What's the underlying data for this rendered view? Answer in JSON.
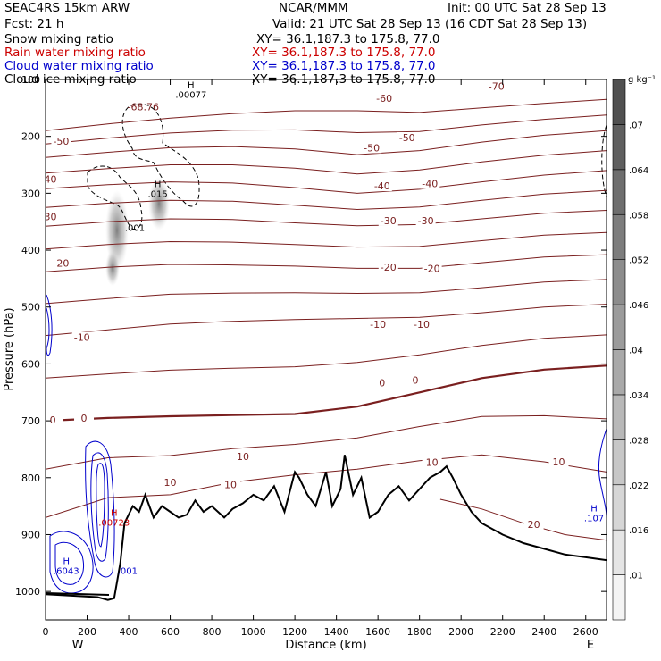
{
  "header": {
    "model": "SEAC4RS 15km ARW",
    "org": "NCAR/MMM",
    "init": "Init: 00 UTC Sat 28 Sep 13",
    "fcst": "Fcst:    21 h",
    "valid": "Valid: 21 UTC Sat 28 Sep 13 (16 CDT Sat 28 Sep 13)",
    "fields": [
      {
        "name": "Snow mixing ratio",
        "xy": "XY=  36.1,187.3 to 175.8, 77.0",
        "color": "#000000"
      },
      {
        "name": "Rain water mixing ratio",
        "xy": "XY=  36.1,187.3 to 175.8, 77.0",
        "color": "#cc0000"
      },
      {
        "name": "Cloud water mixing ratio",
        "xy": "XY=  36.1,187.3 to 175.8, 77.0",
        "color": "#0000cc"
      },
      {
        "name": "Cloud ice mixing ratio",
        "xy": "XY=  36.1,187.3 to 175.8, 77.0",
        "color": "#000000"
      }
    ]
  },
  "chart_data": {
    "type": "contour",
    "xlabel": "Distance (km)",
    "ylabel": "Pressure (hPa)",
    "xlim": [
      0,
      2700
    ],
    "ylim": [
      1050,
      100
    ],
    "x_ticks": [
      0,
      200,
      400,
      600,
      800,
      1000,
      1200,
      1400,
      1600,
      1800,
      2000,
      2200,
      2400,
      2600
    ],
    "y_ticks": [
      100,
      200,
      300,
      400,
      500,
      600,
      700,
      800,
      900,
      1000
    ],
    "y_tick_labels": [
      "100",
      "200",
      "300",
      "400",
      "500",
      "600",
      "700",
      "800",
      "900",
      "1000"
    ],
    "x_end_labels": {
      "left": "W",
      "right": "E"
    },
    "colorbar": {
      "unit": "g kg⁻¹",
      "levels": [
        ".01",
        ".016",
        ".022",
        ".028",
        ".034",
        ".04",
        ".046",
        ".052",
        ".058",
        ".064",
        ".07"
      ],
      "low_color": "#f4f4f4",
      "high_color": "#505050"
    },
    "temperature_contours": {
      "color": "#7a1f1f",
      "levels": [
        -70,
        -60,
        -50,
        -40,
        -30,
        -20,
        -10,
        0,
        10,
        20
      ],
      "lines": [
        {
          "level": -60,
          "x": [
            0,
            300,
            600,
            900,
            1200,
            1500,
            1800,
            2100,
            2400,
            2700
          ],
          "p": [
            190,
            178,
            168,
            160,
            155,
            155,
            158,
            150,
            142,
            135
          ]
        },
        {
          "level": -50,
          "x": [
            0,
            300,
            600,
            900,
            1200,
            1500,
            1800,
            2100,
            2400,
            2700
          ],
          "p": [
            237,
            228,
            220,
            218,
            222,
            232,
            225,
            210,
            198,
            190
          ]
        },
        {
          "level": -40,
          "x": [
            0,
            300,
            600,
            900,
            1200,
            1500,
            1800,
            2100,
            2400,
            2700
          ],
          "p": [
            292,
            285,
            280,
            282,
            290,
            300,
            293,
            280,
            268,
            260
          ]
        },
        {
          "level": -30,
          "x": [
            0,
            300,
            600,
            900,
            1200,
            1500,
            1800,
            2100,
            2400,
            2700
          ],
          "p": [
            358,
            350,
            345,
            346,
            352,
            357,
            355,
            345,
            335,
            330
          ]
        },
        {
          "level": -20,
          "x": [
            0,
            300,
            600,
            900,
            1200,
            1500,
            1800,
            2100,
            2400,
            2700
          ],
          "p": [
            438,
            430,
            425,
            426,
            428,
            432,
            432,
            422,
            412,
            408
          ]
        },
        {
          "level": -10,
          "x": [
            0,
            300,
            600,
            900,
            1200,
            1500,
            1800,
            2100,
            2400,
            2700
          ],
          "p": [
            550,
            540,
            530,
            525,
            522,
            520,
            518,
            510,
            500,
            495
          ]
        },
        {
          "level": 0,
          "x": [
            0,
            300,
            600,
            900,
            1200,
            1500,
            1800,
            2100,
            2400,
            2700
          ],
          "p": [
            700,
            695,
            692,
            690,
            688,
            675,
            650,
            625,
            610,
            603
          ]
        },
        {
          "level": 10,
          "x": [
            0,
            300,
            600,
            900,
            1200,
            1500,
            1800,
            2100,
            2400,
            2700
          ],
          "p": [
            870,
            835,
            830,
            808,
            795,
            785,
            770,
            760,
            772,
            790
          ]
        },
        {
          "level": 20,
          "x": [
            1900,
            2100,
            2300,
            2500,
            2700
          ],
          "p": [
            838,
            855,
            880,
            900,
            910
          ]
        }
      ],
      "labels": [
        {
          "text": "-70",
          "x": 2170,
          "p": 112
        },
        {
          "text": "-60",
          "x": 1630,
          "p": 133
        },
        {
          "text": "-50",
          "x": 75,
          "p": 208
        },
        {
          "text": "-50",
          "x": 1740,
          "p": 202
        },
        {
          "text": "-50",
          "x": 1570,
          "p": 220
        },
        {
          "text": "-40",
          "x": 15,
          "p": 275
        },
        {
          "text": "-40",
          "x": 1620,
          "p": 287
        },
        {
          "text": "-40",
          "x": 1850,
          "p": 283
        },
        {
          "text": "-30",
          "x": 15,
          "p": 341
        },
        {
          "text": "-30",
          "x": 1650,
          "p": 348
        },
        {
          "text": "-30",
          "x": 1830,
          "p": 348
        },
        {
          "text": "-20",
          "x": 75,
          "p": 423
        },
        {
          "text": "-20",
          "x": 1650,
          "p": 430
        },
        {
          "text": "-20",
          "x": 1860,
          "p": 432
        },
        {
          "text": "-10",
          "x": 175,
          "p": 553
        },
        {
          "text": "-10",
          "x": 1600,
          "p": 530
        },
        {
          "text": "-10",
          "x": 1810,
          "p": 530
        },
        {
          "text": "0",
          "x": 35,
          "p": 698
        },
        {
          "text": "0",
          "x": 185,
          "p": 695
        },
        {
          "text": "0",
          "x": 1620,
          "p": 633
        },
        {
          "text": "0",
          "x": 1780,
          "p": 628
        },
        {
          "text": "10",
          "x": 950,
          "p": 763
        },
        {
          "text": "10",
          "x": 1860,
          "p": 773
        },
        {
          "text": "10",
          "x": 2470,
          "p": 772
        },
        {
          "text": "10",
          "x": 600,
          "p": 808
        },
        {
          "text": "10",
          "x": 890,
          "p": 812
        },
        {
          "text": "20",
          "x": 2350,
          "p": 882
        }
      ],
      "extremum": {
        "text": "-68.76",
        "x": 470,
        "p": 148
      }
    },
    "terrain": {
      "x": [
        0,
        250,
        300,
        330,
        360,
        380,
        420,
        450,
        480,
        520,
        560,
        600,
        640,
        680,
        720,
        760,
        800,
        860,
        900,
        950,
        1000,
        1050,
        1100,
        1150,
        1200,
        1220,
        1260,
        1300,
        1350,
        1380,
        1420,
        1440,
        1480,
        1520,
        1560,
        1600,
        1650,
        1700,
        1750,
        1800,
        1850,
        1900,
        1930,
        1960,
        2000,
        2050,
        2100,
        2200,
        2300,
        2400,
        2500,
        2600,
        2700
      ],
      "p": [
        1005,
        1010,
        1015,
        1012,
        950,
        880,
        850,
        860,
        830,
        870,
        850,
        860,
        870,
        865,
        840,
        860,
        850,
        870,
        855,
        845,
        830,
        840,
        815,
        860,
        790,
        800,
        830,
        850,
        790,
        850,
        820,
        760,
        830,
        800,
        870,
        860,
        830,
        815,
        840,
        820,
        800,
        790,
        780,
        800,
        830,
        860,
        880,
        900,
        915,
        925,
        935,
        940,
        945
      ]
    },
    "snow_extremum": {
      "label": "H",
      "value": ".00077",
      "x": 700,
      "p": 118
    },
    "ice_extremum": {
      "label": "H",
      "value": ".015",
      "x": 540,
      "p": 292
    },
    "ice_min_label": {
      "value": ".001",
      "x": 430,
      "p": 360
    },
    "cloud_extremum": {
      "label": "H",
      "value": ".6043",
      "x": 100,
      "p": 955
    },
    "cloud_min_label": {
      "value": ".001",
      "x": 395,
      "p": 963
    },
    "rain_extremum": {
      "label": "H",
      "value": ".00723",
      "x": 330,
      "p": 870
    },
    "right_extremum": {
      "label": "H",
      "value": ".107",
      "x": 2640,
      "p": 862
    }
  }
}
